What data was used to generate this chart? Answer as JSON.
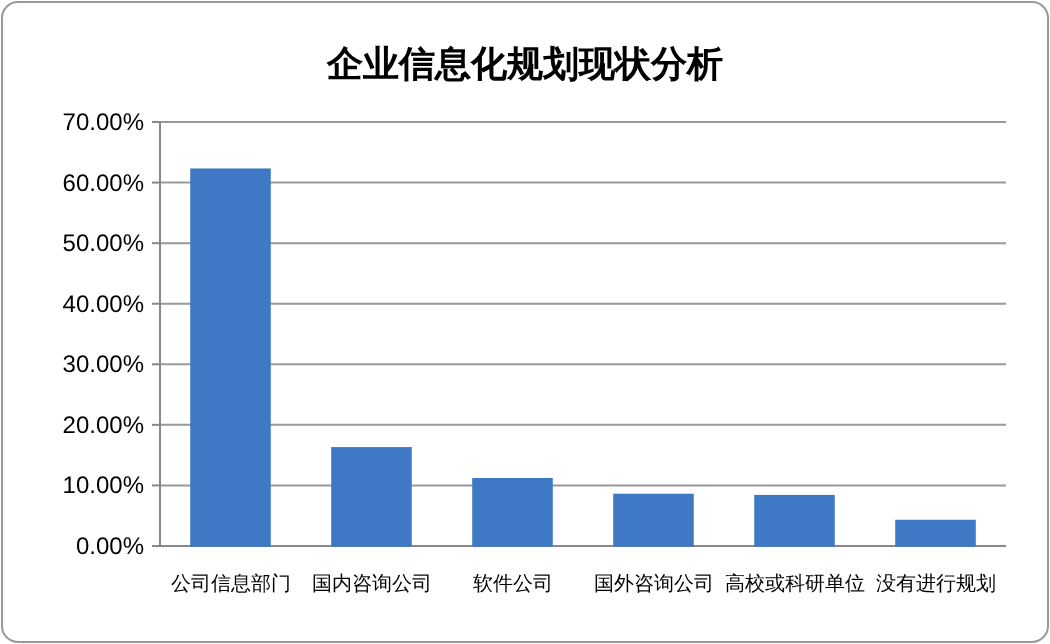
{
  "chart_data": {
    "type": "bar",
    "title": "企业信息化规划现状分析",
    "categories": [
      "公司信息部门",
      "国内咨询公司",
      "软件公司",
      "国外咨询公司",
      "高校或科研单位",
      "没有进行规划"
    ],
    "series": [
      {
        "color": "#3f78c4",
        "values": [
          62.2,
          16.2,
          11.1,
          8.5,
          8.3,
          4.2
        ]
      }
    ],
    "ylim": [
      0,
      70
    ],
    "yticks": [
      {
        "value": 0,
        "label": "0.00%"
      },
      {
        "value": 10,
        "label": "10.00%"
      },
      {
        "value": 20,
        "label": "20.00%"
      },
      {
        "value": 30,
        "label": "30.00%"
      },
      {
        "value": 40,
        "label": "40.00%"
      },
      {
        "value": 50,
        "label": "50.00%"
      },
      {
        "value": 60,
        "label": "60.00%"
      },
      {
        "value": 70,
        "label": "70.00%"
      }
    ],
    "grid": "y"
  }
}
